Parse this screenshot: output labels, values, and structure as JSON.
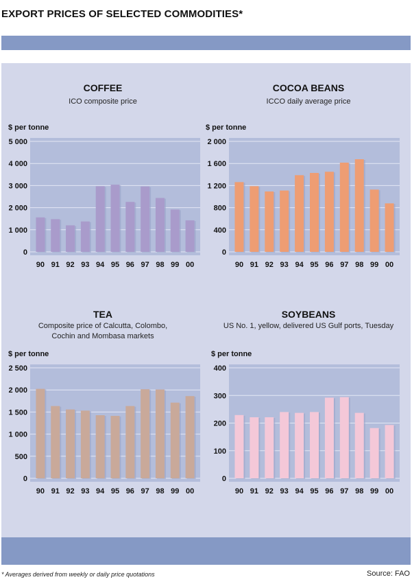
{
  "page": {
    "title": "EXPORT PRICES OF SELECTED COMMODITIES*",
    "footnote": "* Averages derived from weekly or daily price quotations",
    "source": "Source: FAO"
  },
  "chart_data": [
    {
      "type": "bar",
      "title": "COFFEE",
      "subtitle": [
        "ICO composite price"
      ],
      "ylabel": "$ per tonne",
      "xlabel": "",
      "categories": [
        "90",
        "91",
        "92",
        "93",
        "94",
        "95",
        "96",
        "97",
        "98",
        "99",
        "00"
      ],
      "values": [
        1560,
        1480,
        1200,
        1375,
        2970,
        3040,
        2260,
        2960,
        2440,
        1915,
        1425
      ],
      "yticks": [
        0,
        1000,
        2000,
        3000,
        4000,
        5000
      ],
      "ytick_labels": [
        "0",
        "1 000",
        "2 000",
        "3 000",
        "4 000",
        "5 000"
      ],
      "ylim": [
        0,
        5000
      ],
      "grid": true,
      "bar_color": "#a99bcb"
    },
    {
      "type": "bar",
      "title": "COCOA BEANS",
      "subtitle": [
        "ICCO daily average price"
      ],
      "ylabel": "$ per tonne",
      "xlabel": "",
      "categories": [
        "90",
        "91",
        "92",
        "93",
        "94",
        "95",
        "96",
        "97",
        "98",
        "99",
        "00"
      ],
      "values": [
        1263,
        1189,
        1093,
        1110,
        1388,
        1429,
        1450,
        1615,
        1677,
        1127,
        878
      ],
      "yticks": [
        0,
        400,
        800,
        1200,
        1600,
        2000
      ],
      "ytick_labels": [
        "0",
        "400",
        "800",
        "1 200",
        "1 600",
        "2 000"
      ],
      "ylim": [
        0,
        2000
      ],
      "grid": true,
      "bar_color": "#ee9d73"
    },
    {
      "type": "bar",
      "title": "TEA",
      "subtitle": [
        "Composite price of Calcutta, Colombo,",
        "Cochin and Mombasa markets"
      ],
      "ylabel": "$ per tonne",
      "xlabel": "",
      "categories": [
        "90",
        "91",
        "92",
        "93",
        "94",
        "95",
        "96",
        "97",
        "98",
        "99",
        "00"
      ],
      "values": [
        2025,
        1636,
        1558,
        1532,
        1428,
        1413,
        1636,
        2016,
        2010,
        1713,
        1860
      ],
      "yticks": [
        0,
        500,
        1000,
        1500,
        2000,
        2500
      ],
      "ytick_labels": [
        "0",
        "500",
        "1 000",
        "1 500",
        "2 000",
        "2 500"
      ],
      "ylim": [
        0,
        2500
      ],
      "grid": true,
      "bar_color": "#c9a99a"
    },
    {
      "type": "bar",
      "title": "SOYBEANS",
      "subtitle": [
        "US No. 1, yellow, delivered US Gulf ports, Tuesday"
      ],
      "ylabel": "$ per tonne",
      "xlabel": "",
      "categories": [
        "90",
        "91",
        "92",
        "93",
        "94",
        "95",
        "96",
        "97",
        "98",
        "99",
        "00"
      ],
      "values": [
        229,
        221,
        221,
        240,
        237,
        240,
        292,
        294,
        237,
        182,
        193
      ],
      "yticks": [
        0,
        100,
        200,
        300,
        400
      ],
      "ytick_labels": [
        "0",
        "100",
        "200",
        "300",
        "400"
      ],
      "ylim": [
        0,
        400
      ],
      "grid": true,
      "bar_color": "#f4c8d8"
    }
  ]
}
